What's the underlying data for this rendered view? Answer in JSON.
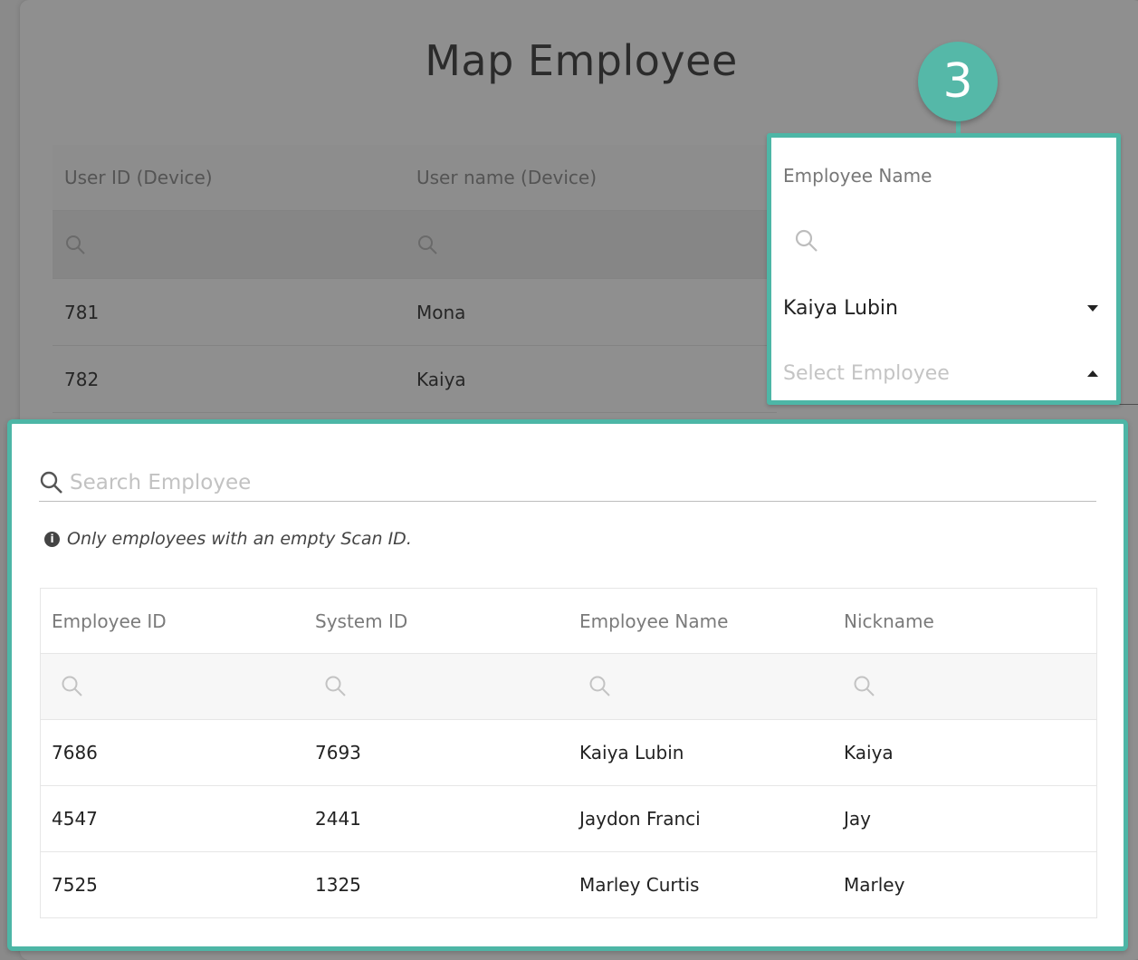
{
  "background_dialog": {
    "title": "Map Employee",
    "table": {
      "headers": [
        "User ID (Device)",
        "User name (Device)"
      ],
      "rows": [
        {
          "user_id": "781",
          "user_name": "Mona"
        },
        {
          "user_id": "782",
          "user_name": "Kaiya"
        }
      ]
    }
  },
  "step_badge": "3",
  "employee_field": {
    "label": "Employee Name",
    "selected_value": "Kaiya Lubin",
    "select_placeholder": "Select Employee"
  },
  "dropdown": {
    "search_placeholder": "Search Employee",
    "note": "Only employees with an empty Scan ID.",
    "headers": [
      "Employee ID",
      "System ID",
      "Employee Name",
      "Nickname"
    ],
    "rows": [
      {
        "employee_id": "7686",
        "system_id": "7693",
        "employee_name": "Kaiya Lubin",
        "nickname": "Kaiya"
      },
      {
        "employee_id": "4547",
        "system_id": "2441",
        "employee_name": "Jaydon Franci",
        "nickname": "Jay"
      },
      {
        "employee_id": "7525",
        "system_id": "1325",
        "employee_name": "Marley Curtis",
        "nickname": "Marley"
      }
    ]
  },
  "colors": {
    "accent": "#4db6a6",
    "overlay": "#8a8a8a"
  },
  "icons": {
    "search": "search-icon",
    "info": "info-icon",
    "caret_down": "caret-down-icon",
    "caret_up": "caret-up-icon"
  }
}
